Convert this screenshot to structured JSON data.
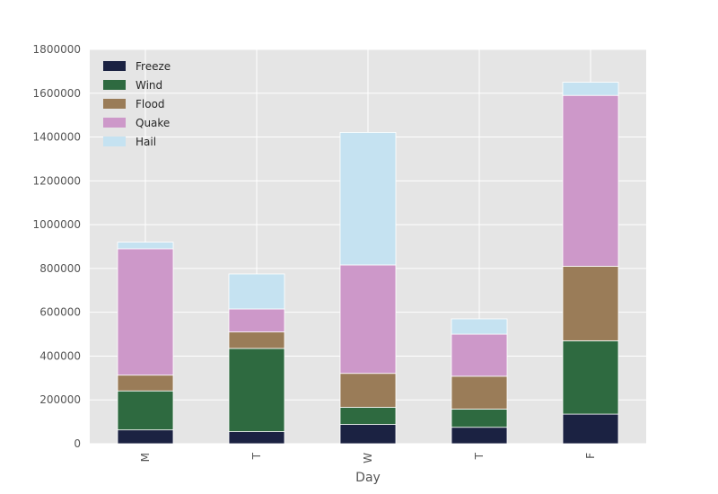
{
  "chart_data": {
    "type": "bar",
    "stacked": true,
    "title": "",
    "xlabel": "Day",
    "ylabel": "",
    "categories": [
      "M",
      "T",
      "W",
      "T",
      "F"
    ],
    "ylim": [
      0,
      1800000
    ],
    "yticks": [
      0,
      200000,
      400000,
      600000,
      800000,
      1000000,
      1200000,
      1400000,
      1600000,
      1800000
    ],
    "grid": true,
    "legend_position": "top-left",
    "series": [
      {
        "name": "Freeze",
        "color": "#1b2242",
        "values": [
          63000,
          55000,
          88000,
          75000,
          135000
        ]
      },
      {
        "name": "Wind",
        "color": "#2e6a40",
        "values": [
          178000,
          380000,
          78000,
          83000,
          335000
        ]
      },
      {
        "name": "Flood",
        "color": "#9a7c58",
        "values": [
          72000,
          75000,
          155000,
          150000,
          340000
        ]
      },
      {
        "name": "Quake",
        "color": "#cd98c9",
        "values": [
          577000,
          105000,
          495000,
          192000,
          780000
        ]
      },
      {
        "name": "Hail",
        "color": "#c5e2f1",
        "values": [
          30000,
          160000,
          605000,
          70000,
          60000
        ]
      }
    ]
  }
}
